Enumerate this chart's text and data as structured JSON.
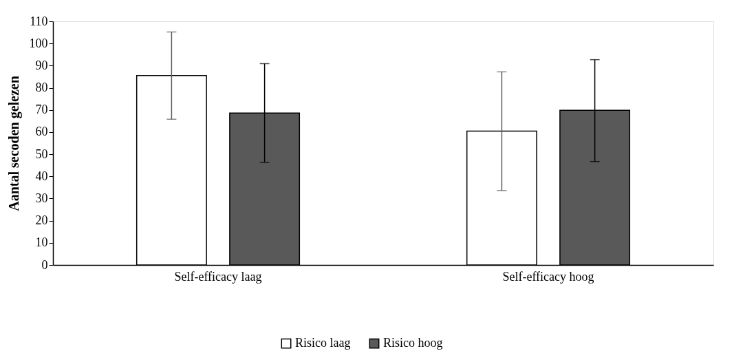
{
  "chart_data": {
    "type": "bar",
    "ylabel": "Aantal secoden gelezen",
    "categories": [
      "Self-efficacy laag",
      "Self-efficacy hoog"
    ],
    "series": [
      {
        "name": "Risico laag",
        "color": "#ffffff",
        "values": [
          85.5,
          60.4
        ],
        "errors": [
          [
            65.8,
            105.2
          ],
          [
            33.6,
            87.2
          ]
        ]
      },
      {
        "name": "Risico hoog",
        "color": "#595959",
        "values": [
          68.6,
          69.8
        ],
        "errors": [
          [
            46.3,
            90.9
          ],
          [
            46.7,
            92.7
          ]
        ]
      }
    ],
    "ylim": [
      0,
      110
    ],
    "yticks": [
      0,
      10,
      20,
      30,
      40,
      50,
      60,
      70,
      80,
      90,
      100,
      110
    ],
    "grid": false,
    "legend": "bottom"
  }
}
